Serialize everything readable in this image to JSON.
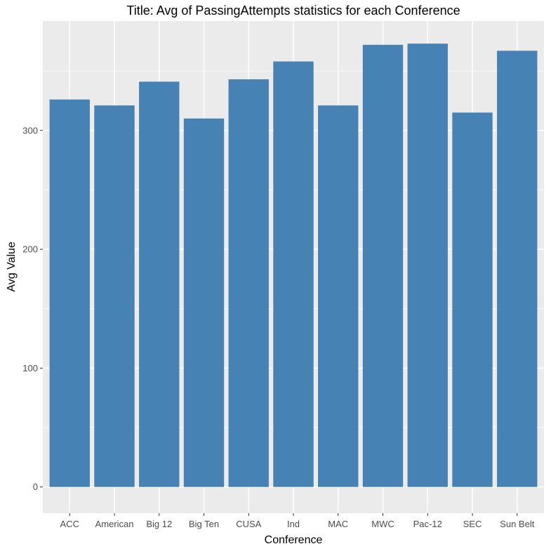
{
  "chart_data": {
    "type": "bar",
    "title": "Title: Avg of PassingAttempts statistics for each Conference",
    "xlabel": "Conference",
    "ylabel": "Avg Value",
    "categories": [
      "ACC",
      "American",
      "Big 12",
      "Big Ten",
      "CUSA",
      "Ind",
      "MAC",
      "MWC",
      "Pac-12",
      "SEC",
      "Sun Belt"
    ],
    "values": [
      326,
      321,
      341,
      310,
      343,
      358,
      321,
      372,
      373,
      315,
      367
    ],
    "ylim": [
      -22,
      392
    ],
    "yticks": [
      0,
      100,
      200,
      300
    ],
    "grid": true,
    "bar_color": "#4682B4",
    "panel_background": "#EBEBEB",
    "grid_color": "#FFFFFF"
  }
}
